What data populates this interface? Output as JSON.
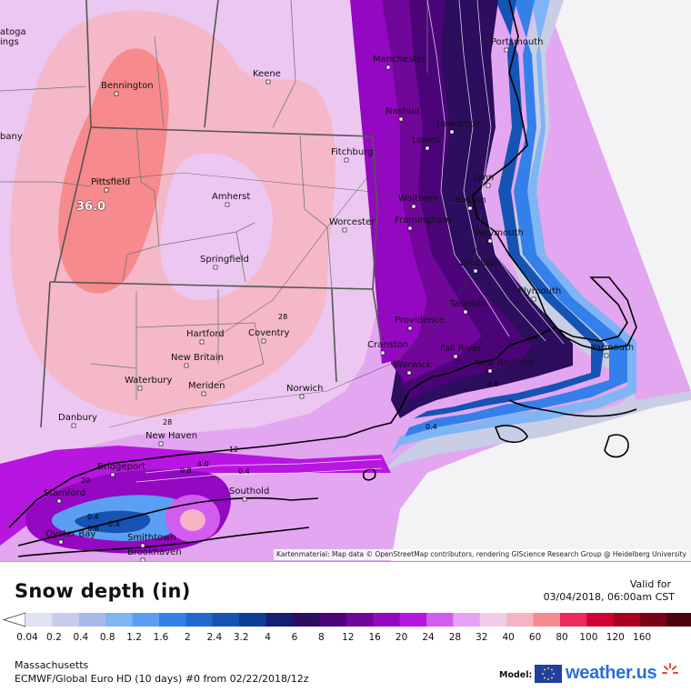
{
  "panel": {
    "title": "Snow depth (in)",
    "valid_label": "Valid for",
    "valid_time": "03/04/2018, 06:00am CST",
    "region": "Massachusetts",
    "model_run": "ECMWF/Global Euro HD (10 days) #0 from 02/22/2018/12z",
    "model_label": "Model:",
    "brand": "weather.us"
  },
  "legend": {
    "labels": [
      "0.04",
      "0.2",
      "0.4",
      "0.8",
      "1.2",
      "1.6",
      "2",
      "2.4",
      "3.2",
      "4",
      "6",
      "8",
      "12",
      "16",
      "20",
      "24",
      "28",
      "32",
      "40",
      "60",
      "80",
      "100",
      "120",
      "160"
    ],
    "colors": [
      "#dfe3f4",
      "#c7ccea",
      "#a9b7e8",
      "#7fb4f5",
      "#5a9ff2",
      "#3380ea",
      "#1f68d0",
      "#1553b5",
      "#0d3d95",
      "#161d72",
      "#2c0d5e",
      "#4a0478",
      "#70069a",
      "#9308c0",
      "#b715e0",
      "#d35cf0",
      "#e6a2f2",
      "#f2cce6",
      "#f5b3c3",
      "#f78a8c",
      "#ed2a5c",
      "#d10034",
      "#a80022",
      "#7a0016",
      "#4d000d"
    ]
  },
  "map": {
    "attribution": "Kartenmaterial: Map data © OpenStreetMap contributors, rendering GIScience Research Group @ Heidelberg University",
    "max_value": "36.0",
    "places": [
      {
        "name": "Portsmouth"
      },
      {
        "name": "Manchester"
      },
      {
        "name": "Keene"
      },
      {
        "name": "Bennington"
      },
      {
        "name": "Nashua"
      },
      {
        "name": "Lawrence"
      },
      {
        "name": "Lowell"
      },
      {
        "name": "Fitchburg"
      },
      {
        "name": "Lynn"
      },
      {
        "name": "Pittsfield"
      },
      {
        "name": "Amherst"
      },
      {
        "name": "Waltham"
      },
      {
        "name": "Boston"
      },
      {
        "name": "Worcester"
      },
      {
        "name": "Framingham"
      },
      {
        "name": "Weymouth"
      },
      {
        "name": "Springfield"
      },
      {
        "name": "Brockton"
      },
      {
        "name": "Plymouth"
      },
      {
        "name": "Taunton"
      },
      {
        "name": "Providence"
      },
      {
        "name": "Hartford"
      },
      {
        "name": "Coventry"
      },
      {
        "name": "Cranston"
      },
      {
        "name": "Fall River"
      },
      {
        "name": "Yarmouth"
      },
      {
        "name": "New Britain"
      },
      {
        "name": "Warwick"
      },
      {
        "name": "New Bedford"
      },
      {
        "name": "Waterbury"
      },
      {
        "name": "Meriden"
      },
      {
        "name": "Norwich"
      },
      {
        "name": "Danbury"
      },
      {
        "name": "New Haven"
      },
      {
        "name": "Bridgeport"
      },
      {
        "name": "Southold"
      },
      {
        "name": "Stamford"
      },
      {
        "name": "Oyster Bay"
      },
      {
        "name": "Smithtown"
      },
      {
        "name": "Brookhaven"
      },
      {
        "name": "atoga"
      },
      {
        "name": "ings"
      },
      {
        "name": "bany"
      }
    ],
    "contour_labels": [
      "28",
      "28",
      "0.4",
      "0.4",
      "0.8",
      "0.8",
      "20",
      "0.4",
      "0.4",
      "12",
      "4.0",
      "0.8"
    ]
  }
}
